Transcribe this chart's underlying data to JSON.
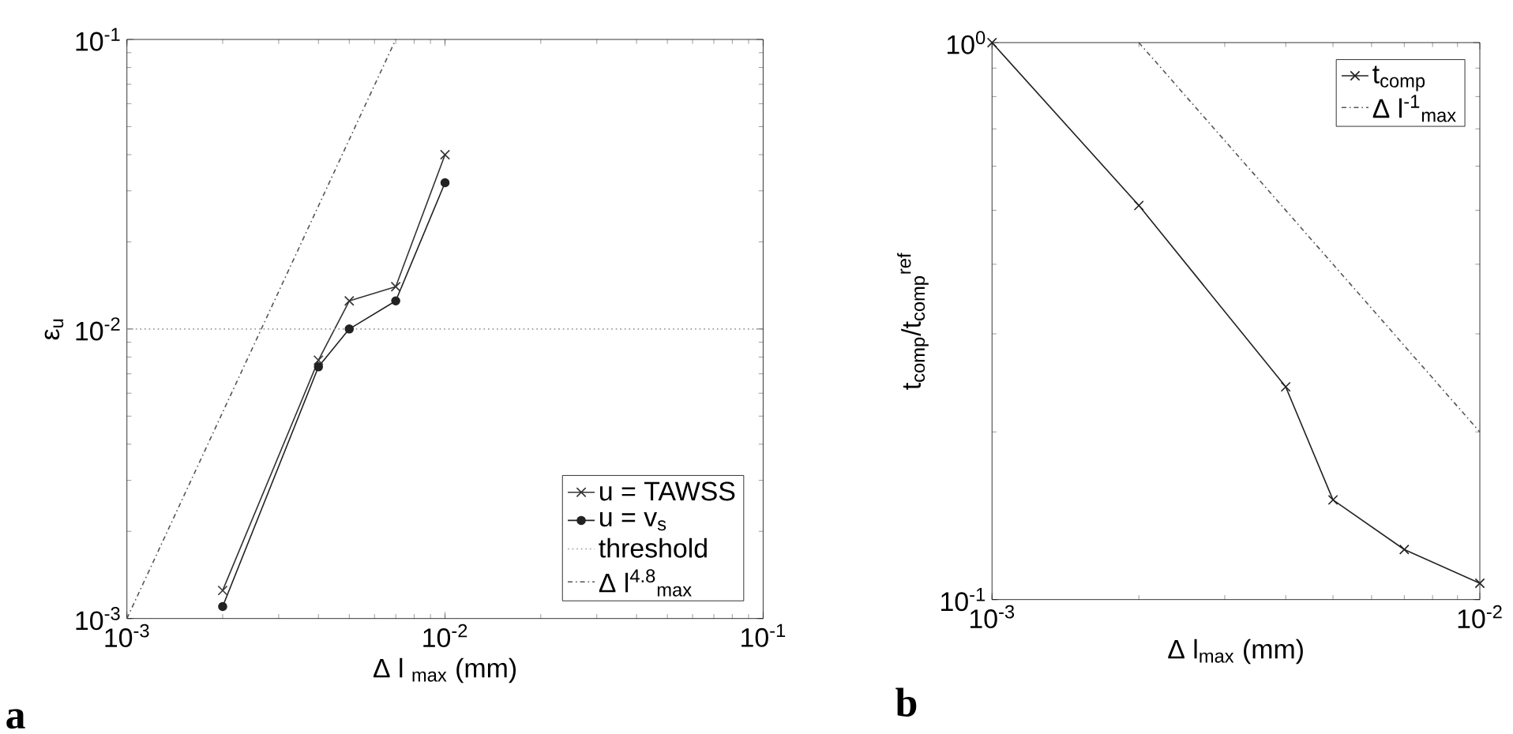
{
  "chart_data": [
    {
      "type": "line",
      "log": "xy",
      "xlabel": "Δ l $_{max}$ (mm)",
      "ylabel": "ε$_{u}$",
      "legend": "bottom right",
      "annotations": [
        "a"
      ],
      "xlim": [
        0.001,
        0.1
      ],
      "ylim": [
        0.001,
        0.1
      ],
      "xticks": [
        {
          "value": 0.001,
          "label": "10$^{-3}$"
        },
        {
          "value": 0.01,
          "label": "10$^{-2}$"
        },
        {
          "value": 0.1,
          "label": "10$^{-1}$"
        }
      ],
      "yticks": [
        {
          "value": 0.001,
          "label": "10$^{-3}$"
        },
        {
          "value": 0.01,
          "label": "10$^{-2}$"
        },
        {
          "value": 0.1,
          "label": "10$^{-1}$"
        }
      ],
      "series": [
        {
          "name": "u = TAWSS",
          "color": "#333333",
          "marker": "cross",
          "line_style": "solid",
          "x": [
            0.002,
            0.004,
            0.005,
            0.007,
            0.01
          ],
          "values": [
            0.00125,
            0.0078,
            0.0125,
            0.014,
            0.04
          ]
        },
        {
          "name": "u = v$_{s}$",
          "color": "#222222",
          "marker": "circle",
          "line_style": "solid",
          "x": [
            0.002,
            0.004,
            0.005,
            0.007,
            0.01
          ],
          "values": [
            0.0011,
            0.0074,
            0.01,
            0.0125,
            0.032
          ]
        },
        {
          "name": "threshold",
          "color": "#999999",
          "marker": "none",
          "line_style": "dotted",
          "x": [
            0.001,
            0.1
          ],
          "values": [
            0.01,
            0.01
          ]
        },
        {
          "name": "Δ l$^{4.8}$$_{max}$",
          "color": "#555555",
          "marker": "none",
          "line_style": "dashdot",
          "x": [
            0.001,
            0.007
          ],
          "values": [
            0.001,
            0.1
          ]
        }
      ]
    },
    {
      "type": "line",
      "log": "xy",
      "xlabel": "Δ l$_{max}$ (mm)",
      "ylabel": "t$_{comp}$/t$_{comp}$$^{ref}$",
      "legend": "top right",
      "annotations": [
        "b"
      ],
      "xlim": [
        0.001,
        0.01
      ],
      "ylim": [
        0.1,
        1
      ],
      "xticks": [
        {
          "value": 0.001,
          "label": "10$^{-3}$"
        },
        {
          "value": 0.01,
          "label": "10$^{-2}$"
        }
      ],
      "yticks": [
        {
          "value": 0.1,
          "label": "10$^{-1}$"
        },
        {
          "value": 1,
          "label": "10$^{0}$"
        }
      ],
      "series": [
        {
          "name": "t$_{comp}$",
          "color": "#222222",
          "marker": "cross",
          "line_style": "solid",
          "x": [
            0.001,
            0.002,
            0.004,
            0.005,
            0.007,
            0.01
          ],
          "values": [
            1,
            0.51,
            0.241,
            0.151,
            0.123,
            0.107
          ]
        },
        {
          "name": "Δ l$^{-1}$$_{max}$",
          "color": "#555555",
          "marker": "none",
          "line_style": "dashdot",
          "x": [
            0.002,
            0.01
          ],
          "values": [
            1,
            0.2
          ]
        }
      ]
    }
  ]
}
